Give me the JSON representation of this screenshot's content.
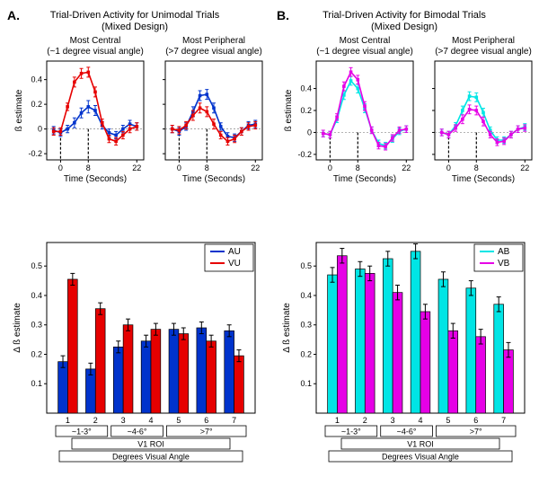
{
  "panelA": {
    "letter": "A.",
    "title1": "Trial-Driven Activity for Unimodal Trials",
    "title2": "(Mixed Design)",
    "line_central": {
      "title1": "Most Central",
      "title2": "(~1 degree visual angle)",
      "ylabel": "ß estimate",
      "xlabel": "Time (Seconds)",
      "xlim": [
        -4,
        24
      ],
      "ylim": [
        -0.25,
        0.55
      ],
      "xticks": [
        0,
        8,
        22
      ],
      "yticks": [
        -0.2,
        0,
        0.2,
        0.4
      ],
      "dashpos": [
        0,
        8
      ],
      "grid_color": "#999999",
      "series": [
        {
          "name": "AU",
          "color": "#0033cc",
          "x": [
            -2,
            0,
            2,
            4,
            6,
            8,
            10,
            12,
            14,
            16,
            18,
            20,
            22
          ],
          "y": [
            -0.01,
            -0.03,
            0.0,
            0.05,
            0.13,
            0.18,
            0.15,
            0.03,
            -0.03,
            -0.05,
            0.0,
            0.04,
            0.02
          ],
          "err": [
            0.03,
            0.03,
            0.03,
            0.04,
            0.04,
            0.05,
            0.04,
            0.03,
            0.03,
            0.03,
            0.03,
            0.03,
            0.03
          ]
        },
        {
          "name": "VU",
          "color": "#e60000",
          "x": [
            -2,
            0,
            2,
            4,
            6,
            8,
            10,
            12,
            14,
            16,
            18,
            20,
            22
          ],
          "y": [
            -0.02,
            -0.02,
            0.18,
            0.38,
            0.45,
            0.46,
            0.3,
            0.05,
            -0.08,
            -0.1,
            -0.05,
            0.0,
            0.02
          ],
          "err": [
            0.03,
            0.03,
            0.03,
            0.04,
            0.04,
            0.04,
            0.04,
            0.03,
            0.03,
            0.03,
            0.03,
            0.03,
            0.03
          ]
        }
      ]
    },
    "line_peripheral": {
      "title1": "Most Peripheral",
      "title2": "(>7 degree visual angle)",
      "xlabel": "Time (Seconds)",
      "xlim": [
        -4,
        24
      ],
      "ylim": [
        -0.25,
        0.55
      ],
      "xticks": [
        0,
        8,
        22
      ],
      "yticks": [
        -0.2,
        0,
        0.2,
        0.4
      ],
      "dashpos": [
        0,
        8
      ],
      "series": [
        {
          "name": "AU",
          "color": "#0033cc",
          "x": [
            -2,
            0,
            2,
            4,
            6,
            8,
            10,
            12,
            14,
            16,
            18,
            20,
            22
          ],
          "y": [
            0.0,
            -0.02,
            0.02,
            0.14,
            0.27,
            0.28,
            0.17,
            0.02,
            -0.06,
            -0.07,
            -0.02,
            0.03,
            0.04
          ],
          "err": [
            0.03,
            0.03,
            0.03,
            0.04,
            0.04,
            0.04,
            0.04,
            0.03,
            0.03,
            0.03,
            0.03,
            0.03,
            0.03
          ]
        },
        {
          "name": "VU",
          "color": "#e60000",
          "x": [
            -2,
            0,
            2,
            4,
            6,
            8,
            10,
            12,
            14,
            16,
            18,
            20,
            22
          ],
          "y": [
            0.0,
            -0.01,
            0.03,
            0.11,
            0.17,
            0.14,
            0.04,
            -0.05,
            -0.1,
            -0.08,
            -0.02,
            0.02,
            0.03
          ],
          "err": [
            0.03,
            0.03,
            0.03,
            0.04,
            0.04,
            0.04,
            0.04,
            0.03,
            0.03,
            0.03,
            0.03,
            0.03,
            0.03
          ]
        }
      ]
    },
    "bar": {
      "ylabel": "Δ ß estimate",
      "xlabel_top": "V1 ROI",
      "xlabel_bottom": "Degrees Visual Angle",
      "ylim": [
        0,
        0.58
      ],
      "yticks": [
        0.1,
        0.2,
        0.3,
        0.4,
        0.5
      ],
      "categories": [
        1,
        2,
        3,
        4,
        5,
        6,
        7
      ],
      "groups": [
        {
          "label": "~1-3°",
          "cols": [
            1,
            2
          ]
        },
        {
          "label": "~4-6°",
          "cols": [
            3,
            4
          ]
        },
        {
          "label": ">7°",
          "cols": [
            5,
            6,
            7
          ]
        }
      ],
      "legend": [
        {
          "label": "AU",
          "color": "#0033cc"
        },
        {
          "label": "VU",
          "color": "#e60000"
        }
      ],
      "series": [
        {
          "name": "AU",
          "color": "#0033cc",
          "values": [
            0.175,
            0.15,
            0.225,
            0.245,
            0.285,
            0.29,
            0.28
          ],
          "err": [
            0.02,
            0.02,
            0.02,
            0.02,
            0.02,
            0.02,
            0.02
          ]
        },
        {
          "name": "VU",
          "color": "#e60000",
          "values": [
            0.455,
            0.355,
            0.3,
            0.285,
            0.27,
            0.245,
            0.195
          ],
          "err": [
            0.02,
            0.02,
            0.02,
            0.02,
            0.02,
            0.02,
            0.02
          ]
        }
      ],
      "bar_width": 0.35
    }
  },
  "panelB": {
    "letter": "B.",
    "title1": "Trial-Driven Activity for Bimodal Trials",
    "title2": "(Mixed Design)",
    "line_central": {
      "title1": "Most Central",
      "title2": "(~1 degree visual angle)",
      "ylabel": "ß estimate",
      "xlabel": "Time (Seconds)",
      "xlim": [
        -4,
        24
      ],
      "ylim": [
        -0.25,
        0.65
      ],
      "xticks": [
        0,
        8,
        22
      ],
      "yticks": [
        -0.2,
        0,
        0.2,
        0.4
      ],
      "dashpos": [
        0,
        8
      ],
      "series": [
        {
          "name": "AB",
          "color": "#00e5e5",
          "x": [
            -2,
            0,
            2,
            4,
            6,
            8,
            10,
            12,
            14,
            16,
            18,
            20,
            22
          ],
          "y": [
            -0.01,
            -0.02,
            0.12,
            0.34,
            0.47,
            0.4,
            0.22,
            0.02,
            -0.1,
            -0.12,
            -0.06,
            0.01,
            0.03
          ],
          "err": [
            0.03,
            0.03,
            0.03,
            0.04,
            0.04,
            0.04,
            0.04,
            0.03,
            0.03,
            0.03,
            0.03,
            0.03,
            0.03
          ]
        },
        {
          "name": "VB",
          "color": "#e600e6",
          "x": [
            -2,
            0,
            2,
            4,
            6,
            8,
            10,
            12,
            14,
            16,
            18,
            20,
            22
          ],
          "y": [
            -0.01,
            -0.02,
            0.14,
            0.42,
            0.55,
            0.48,
            0.24,
            0.02,
            -0.12,
            -0.13,
            -0.05,
            0.02,
            0.03
          ],
          "err": [
            0.03,
            0.03,
            0.03,
            0.04,
            0.04,
            0.04,
            0.04,
            0.03,
            0.03,
            0.03,
            0.03,
            0.03,
            0.03
          ]
        }
      ]
    },
    "line_peripheral": {
      "title1": "Most Peripheral",
      "title2": "(>7 degree visual angle)",
      "xlabel": "Time (Seconds)",
      "xlim": [
        -4,
        24
      ],
      "ylim": [
        -0.25,
        0.65
      ],
      "xticks": [
        0,
        8,
        22
      ],
      "yticks": [
        -0.2,
        0,
        0.2,
        0.4
      ],
      "dashpos": [
        0,
        8
      ],
      "series": [
        {
          "name": "AB",
          "color": "#00e5e5",
          "x": [
            -2,
            0,
            2,
            4,
            6,
            8,
            10,
            12,
            14,
            16,
            18,
            20,
            22
          ],
          "y": [
            0.0,
            -0.02,
            0.06,
            0.2,
            0.33,
            0.32,
            0.18,
            0.02,
            -0.07,
            -0.07,
            -0.02,
            0.03,
            0.05
          ],
          "err": [
            0.03,
            0.03,
            0.03,
            0.04,
            0.04,
            0.04,
            0.04,
            0.03,
            0.03,
            0.03,
            0.03,
            0.03,
            0.03
          ]
        },
        {
          "name": "VB",
          "color": "#e600e6",
          "x": [
            -2,
            0,
            2,
            4,
            6,
            8,
            10,
            12,
            14,
            16,
            18,
            20,
            22
          ],
          "y": [
            0.0,
            -0.02,
            0.04,
            0.12,
            0.21,
            0.2,
            0.1,
            -0.02,
            -0.09,
            -0.08,
            -0.02,
            0.03,
            0.04
          ],
          "err": [
            0.03,
            0.03,
            0.03,
            0.04,
            0.04,
            0.04,
            0.04,
            0.03,
            0.03,
            0.03,
            0.03,
            0.03,
            0.03
          ]
        }
      ]
    },
    "bar": {
      "ylabel": "Δ ß estimate",
      "xlabel_top": "V1 ROI",
      "xlabel_bottom": "Degrees Visual Angle",
      "ylim": [
        0,
        0.58
      ],
      "yticks": [
        0.1,
        0.2,
        0.3,
        0.4,
        0.5
      ],
      "categories": [
        1,
        2,
        3,
        4,
        5,
        6,
        7
      ],
      "groups": [
        {
          "label": "~1-3°",
          "cols": [
            1,
            2
          ]
        },
        {
          "label": "~4-6°",
          "cols": [
            3,
            4
          ]
        },
        {
          "label": ">7°",
          "cols": [
            5,
            6,
            7
          ]
        }
      ],
      "legend": [
        {
          "label": "AB",
          "color": "#00e5e5"
        },
        {
          "label": "VB",
          "color": "#e600e6"
        }
      ],
      "series": [
        {
          "name": "AB",
          "color": "#00e5e5",
          "values": [
            0.47,
            0.49,
            0.525,
            0.55,
            0.455,
            0.425,
            0.37
          ],
          "err": [
            0.025,
            0.025,
            0.025,
            0.025,
            0.025,
            0.025,
            0.025
          ]
        },
        {
          "name": "VB",
          "color": "#e600e6",
          "values": [
            0.535,
            0.475,
            0.41,
            0.345,
            0.28,
            0.26,
            0.215
          ],
          "err": [
            0.025,
            0.025,
            0.025,
            0.025,
            0.025,
            0.025,
            0.025
          ]
        }
      ],
      "bar_width": 0.35
    }
  },
  "style": {
    "axis_color": "#000000",
    "text_color": "#000000",
    "err_color": "#000000",
    "dash_color": "#000000"
  }
}
